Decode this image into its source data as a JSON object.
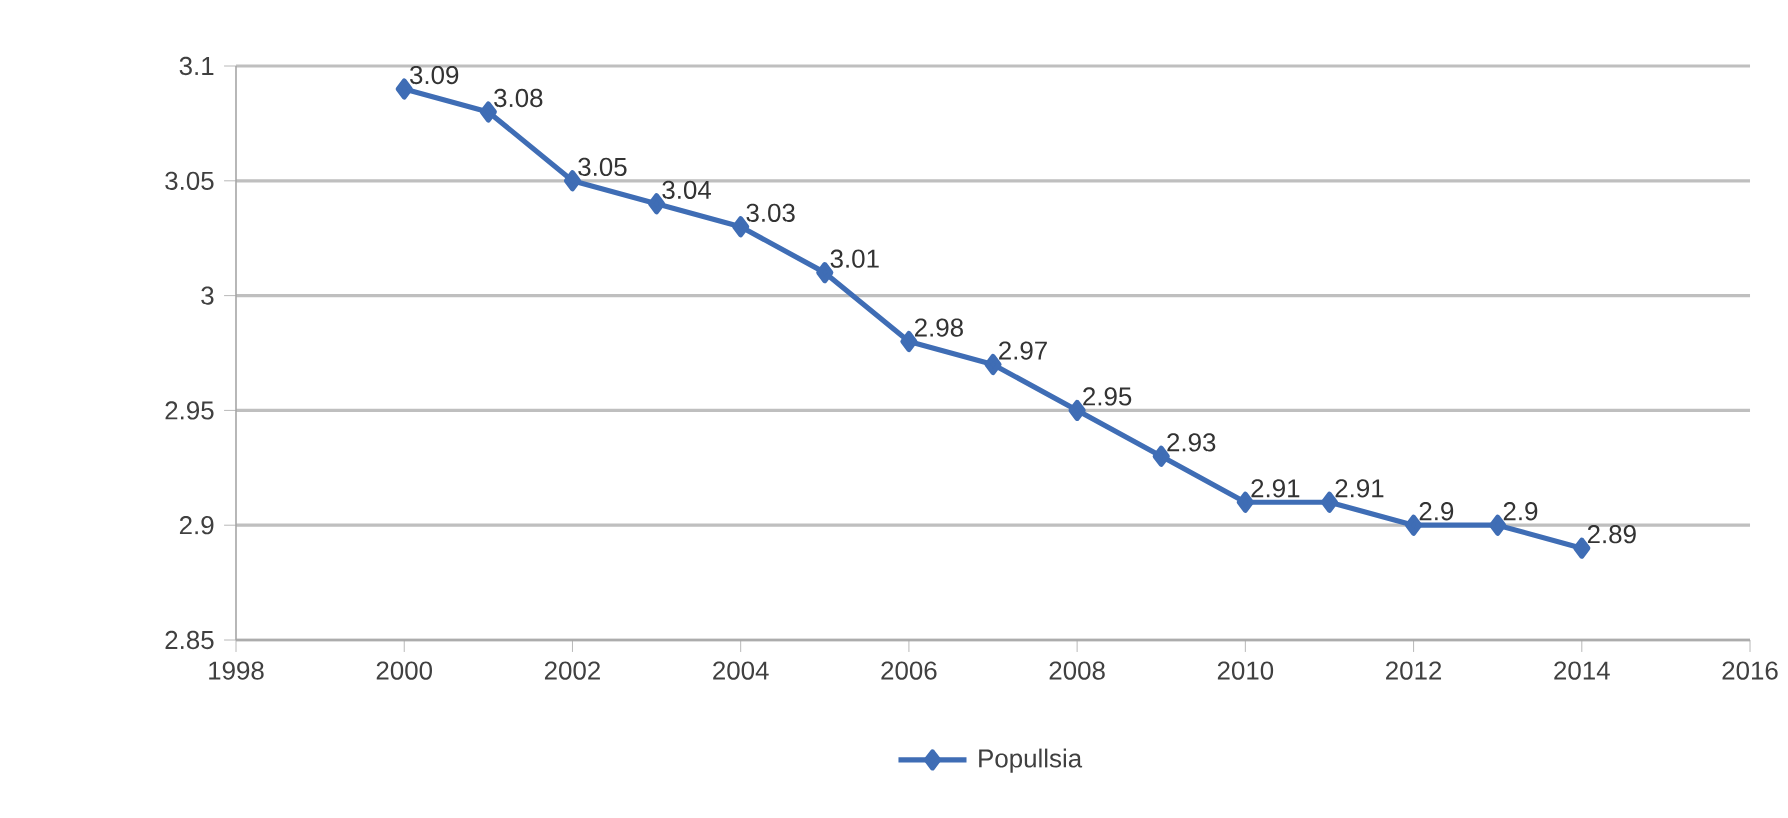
{
  "chart_data": {
    "type": "line",
    "x": [
      2000,
      2001,
      2002,
      2003,
      2004,
      2005,
      2006,
      2007,
      2008,
      2009,
      2010,
      2011,
      2012,
      2013,
      2014
    ],
    "series": [
      {
        "name": "Popullsia",
        "color": "#3f6db5",
        "values": [
          3.09,
          3.08,
          3.05,
          3.04,
          3.03,
          3.01,
          2.98,
          2.97,
          2.95,
          2.93,
          2.91,
          2.91,
          2.9,
          2.9,
          2.89
        ]
      }
    ],
    "xlim": [
      1998,
      2016
    ],
    "xticks": [
      1998,
      2000,
      2002,
      2004,
      2006,
      2008,
      2010,
      2012,
      2014,
      2016
    ],
    "ylim": [
      2.85,
      3.1
    ],
    "yticks": [
      2.85,
      2.9,
      2.95,
      3,
      3.05,
      3.1
    ],
    "grid": "y",
    "legend": "bottom",
    "marker": "diamond",
    "line_style": "solid",
    "data_labels": true
  }
}
